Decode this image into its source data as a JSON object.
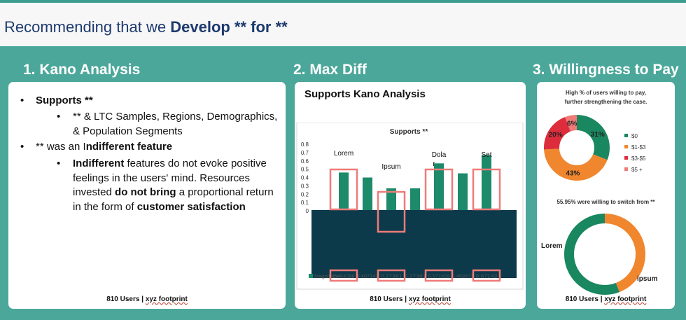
{
  "header": {
    "title_pre": "Recommending that we ",
    "title_bold": "Develop ** for **"
  },
  "sections": {
    "kano_title": "1. Kano Analysis",
    "maxdiff_title": "2. Max Diff",
    "wtp_title": "3. Willingness to Pay"
  },
  "kano": {
    "item1_label": "Supports **",
    "item1_sub": "** & LTC Samples, Regions, Demographics, & Population Segments",
    "item2_pre": "** was an I",
    "item2_bold": "ndifferent feature",
    "item2_sub_bold1": "Indifferent",
    "item2_sub_text1": " features do not evoke positive feelings in the users' mind. Resources invested ",
    "item2_sub_bold2": "do not bring",
    "item2_sub_text2": " a proportional return in the form of ",
    "item2_sub_bold3": "customer satisfaction",
    "footer_users": "810 Users | ",
    "footer_xyz": "xyz footprint"
  },
  "maxdiff": {
    "card_title": "Supports Kano Analysis",
    "footer_users": "810 Users | ",
    "footer_xyz": "xyz footprint"
  },
  "wtp": {
    "note1_line1": "High % of users willing to pay,",
    "note1_line2": "further strengthening the case.",
    "note2": "55.95% were willing to switch from **",
    "footer_users": "810 Users | ",
    "footer_xyz": "xyz footprint"
  },
  "chart_data": [
    {
      "type": "bar",
      "title": "Supports **",
      "ylim": [
        0,
        0.8
      ],
      "yticks": [
        "0",
        "0.1",
        "0.2",
        "0.3",
        "0.4",
        "0.5",
        "0.6",
        "0.7",
        "0.8"
      ],
      "values": [
        0.46,
        0.4,
        0.27,
        0.27,
        0.57,
        0.45,
        0.67
      ],
      "table_label": "Magnitude",
      "table_cells": [
        "0.464286",
        "0.407143",
        "0.27381",
        "0.27381",
        "0.571429",
        "0.453571",
        "0.67142"
      ],
      "annotations": [
        "Lorem",
        "Ipsum",
        "Dola r",
        "Set"
      ],
      "color": "#1d8a6a",
      "highlight_color": "#ee7b78"
    },
    {
      "type": "pie",
      "legend": [
        "$0",
        "$1-$3",
        "$3-$5",
        "$5 +"
      ],
      "values": [
        31,
        43,
        20,
        6
      ],
      "labels": [
        "31%",
        "43%",
        "20%",
        "6%"
      ],
      "colors": [
        "#19875f",
        "#f0862e",
        "#dd2d3c",
        "#ee7b78"
      ]
    },
    {
      "type": "pie",
      "labels": [
        "Lorem",
        "ipsum"
      ],
      "values": [
        44.05,
        55.95
      ],
      "colors": [
        "#f0862e",
        "#19875f"
      ]
    }
  ]
}
